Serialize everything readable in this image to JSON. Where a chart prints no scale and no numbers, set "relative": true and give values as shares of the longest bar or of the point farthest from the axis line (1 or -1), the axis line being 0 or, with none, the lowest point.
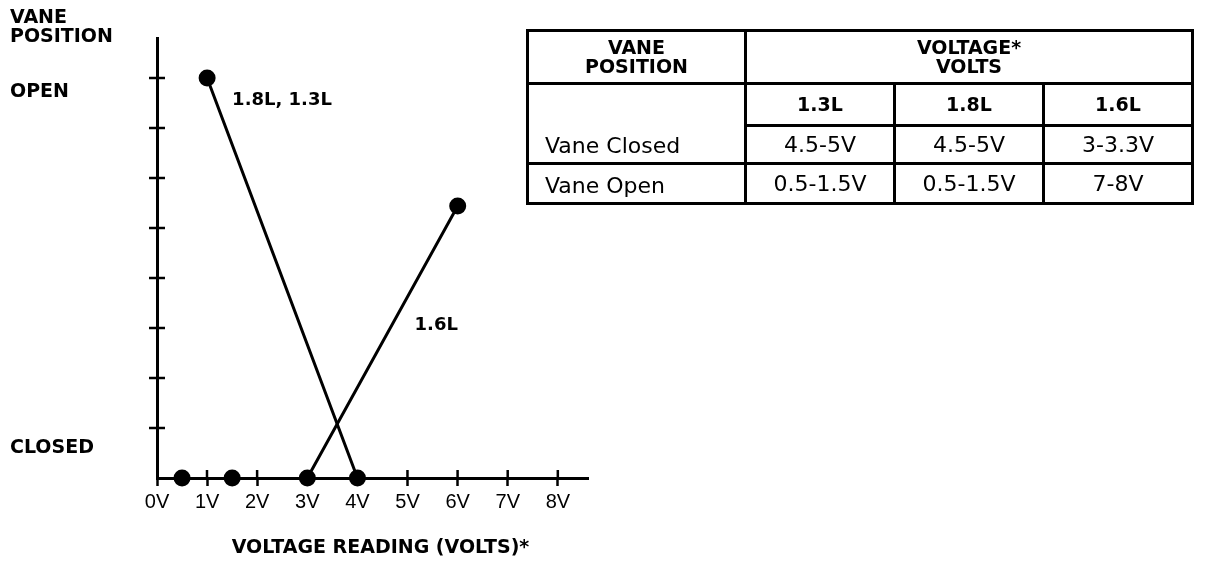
{
  "chart_data": [
    {
      "type": "line",
      "relative": true,
      "ylabel": "VANE POSITION",
      "xlabel": "VOLTAGE READING (VOLTS)*",
      "xlim": [
        0,
        8.6
      ],
      "xticks": [
        {
          "value": 0,
          "label": "0V"
        },
        {
          "value": 1,
          "label": "1V"
        },
        {
          "value": 2,
          "label": "2V"
        },
        {
          "value": 3,
          "label": "3V"
        },
        {
          "value": 4,
          "label": "4V"
        },
        {
          "value": 5,
          "label": "5V"
        },
        {
          "value": 6,
          "label": "6V"
        },
        {
          "value": 7,
          "label": "7V"
        },
        {
          "value": 8,
          "label": "8V"
        }
      ],
      "annotations": [
        "OPEN",
        "CLOSED"
      ],
      "marker": "circle",
      "series": [
        {
          "name": "1.8L, 1.3L",
          "type": "line",
          "color": "#000000",
          "x": [
            1,
            4
          ],
          "values": [
            1,
            0
          ]
        },
        {
          "name": "1.6L",
          "type": "line",
          "color": "#000000",
          "x": [
            3,
            6
          ],
          "values": [
            0,
            0.68
          ]
        },
        {
          "type": "scatter",
          "color": "#000000",
          "x": [
            0.5,
            1.5
          ],
          "values": [
            0,
            0
          ]
        }
      ]
    },
    {
      "type": "other",
      "ylabel": "VANE POSITION",
      "xlabel": "VOLTAGE* VOLTS",
      "categories": [
        "1.3L",
        "1.8L",
        "1.6L"
      ],
      "y_categories": [
        "Vane Closed",
        "Vane Open"
      ],
      "cell_labels": [
        [
          "4.5-5V",
          "4.5-5V",
          "3-3.3V"
        ],
        [
          "0.5-1.5V",
          "0.5-1.5V",
          "7-8V"
        ]
      ]
    }
  ]
}
